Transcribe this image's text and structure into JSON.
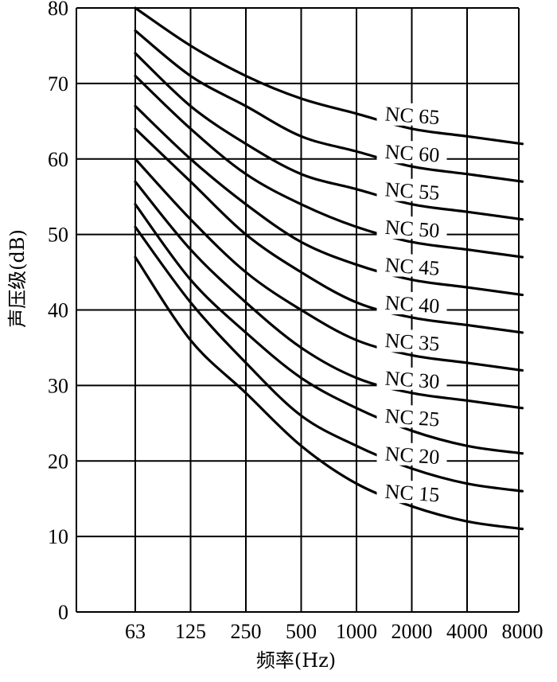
{
  "chart_data": {
    "type": "line",
    "xlabel": "频率(Hz)",
    "ylabel": "声压级(dB)",
    "x_ticks": [
      "63",
      "125",
      "250",
      "500",
      "1000",
      "2000",
      "4000",
      "8000"
    ],
    "y_ticks": [
      "0",
      "10",
      "20",
      "30",
      "40",
      "50",
      "60",
      "70",
      "80"
    ],
    "ylim": [
      0,
      80
    ],
    "x_scale": "log2 octave bands",
    "grid": true,
    "categories": [
      "63",
      "125",
      "250",
      "500",
      "1000",
      "2000",
      "4000",
      "8000"
    ],
    "series": [
      {
        "name": "NC 65",
        "values": [
          80,
          75,
          71,
          68,
          66,
          64,
          63,
          62
        ]
      },
      {
        "name": "NC 60",
        "values": [
          77,
          71,
          67,
          63,
          61,
          59,
          58,
          57
        ]
      },
      {
        "name": "NC 55",
        "values": [
          74,
          67,
          62,
          58,
          56,
          54,
          53,
          52
        ]
      },
      {
        "name": "NC 50",
        "values": [
          71,
          64,
          58,
          54,
          51,
          49,
          48,
          47
        ]
      },
      {
        "name": "NC 45",
        "values": [
          67,
          60,
          54,
          49,
          46,
          44,
          43,
          42
        ]
      },
      {
        "name": "NC 40",
        "values": [
          64,
          57,
          50,
          45,
          41,
          39,
          38,
          37
        ]
      },
      {
        "name": "NC 35",
        "values": [
          60,
          52,
          45,
          40,
          36,
          34,
          33,
          32
        ]
      },
      {
        "name": "NC 30",
        "values": [
          57,
          48,
          41,
          35,
          31,
          29,
          28,
          27
        ]
      },
      {
        "name": "NC 25",
        "values": [
          54,
          44,
          37,
          31,
          27,
          24,
          22,
          21
        ]
      },
      {
        "name": "NC 20",
        "values": [
          51,
          41,
          33,
          26,
          22,
          19,
          17,
          16
        ]
      },
      {
        "name": "NC 15",
        "values": [
          47,
          36,
          29,
          22,
          17,
          14,
          12,
          11
        ]
      }
    ]
  }
}
